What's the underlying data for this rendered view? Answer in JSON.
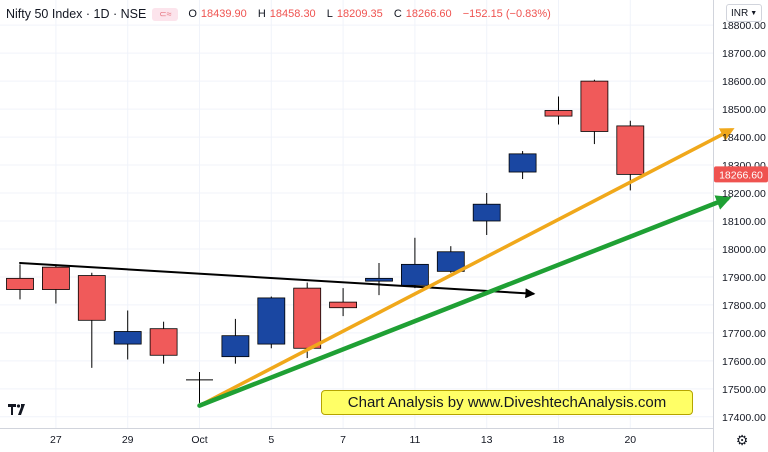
{
  "header": {
    "symbol": "Nifty 50 Index · 1D · NSE",
    "open_label": "O",
    "open": "18439.90",
    "high_label": "H",
    "high": "18458.30",
    "low_label": "L",
    "low": "18209.35",
    "close_label": "C",
    "close": "18266.60",
    "change": "−152.15 (−0.83%)"
  },
  "currency_button": "INR",
  "banner_text": "Chart Analysis by www.DiveshtechAnalysis.com",
  "colors": {
    "up": "#1a47a2",
    "down": "#f05a5a",
    "black_line": "#000000",
    "orange_line": "#f0a81b",
    "green_line": "#1fa034",
    "price_tag": "#ef5350"
  },
  "chart_data": {
    "type": "candlestick",
    "y_ticks": [
      17400,
      17500,
      17600,
      17700,
      17800,
      17900,
      18000,
      18100,
      18200,
      18300,
      18400,
      18500,
      18600,
      18700,
      18800
    ],
    "ylim": [
      17360,
      18890
    ],
    "x_tick_labels": [
      {
        "index": 1,
        "label": "27"
      },
      {
        "index": 3,
        "label": "29"
      },
      {
        "index": 5,
        "label": "Oct"
      },
      {
        "index": 7,
        "label": "5"
      },
      {
        "index": 9,
        "label": "7"
      },
      {
        "index": 11,
        "label": "11"
      },
      {
        "index": 13,
        "label": "13"
      },
      {
        "index": 15,
        "label": "18"
      },
      {
        "index": 17,
        "label": "20"
      }
    ],
    "candles": [
      {
        "i": 0,
        "open": 17895,
        "high": 17945,
        "low": 17820,
        "close": 17855
      },
      {
        "i": 1,
        "open": 17935,
        "high": 17945,
        "low": 17805,
        "close": 17855
      },
      {
        "i": 2,
        "open": 17905,
        "high": 17915,
        "low": 17575,
        "close": 17745
      },
      {
        "i": 3,
        "open": 17660,
        "high": 17780,
        "low": 17605,
        "close": 17705
      },
      {
        "i": 4,
        "open": 17715,
        "high": 17740,
        "low": 17590,
        "close": 17620
      },
      {
        "i": 5,
        "open": 17532,
        "high": 17560,
        "low": 17450,
        "close": 17532
      },
      {
        "i": 6,
        "open": 17615,
        "high": 17750,
        "low": 17590,
        "close": 17690
      },
      {
        "i": 7,
        "open": 17660,
        "high": 17830,
        "low": 17645,
        "close": 17825
      },
      {
        "i": 8,
        "open": 17860,
        "high": 17880,
        "low": 17610,
        "close": 17645
      },
      {
        "i": 9,
        "open": 17810,
        "high": 17860,
        "low": 17760,
        "close": 17790
      },
      {
        "i": 10,
        "open": 17885,
        "high": 17950,
        "low": 17835,
        "close": 17895
      },
      {
        "i": 11,
        "open": 17870,
        "high": 18040,
        "low": 17860,
        "close": 17945
      },
      {
        "i": 12,
        "open": 17920,
        "high": 18010,
        "low": 17915,
        "close": 17990
      },
      {
        "i": 13,
        "open": 18100,
        "high": 18200,
        "low": 18050,
        "close": 18160
      },
      {
        "i": 14,
        "open": 18275,
        "high": 18350,
        "low": 18250,
        "close": 18340
      },
      {
        "i": 15,
        "open": 18495,
        "high": 18545,
        "low": 18445,
        "close": 18475
      },
      {
        "i": 16,
        "open": 18600,
        "high": 18605,
        "low": 18375,
        "close": 18420
      },
      {
        "i": 17,
        "open": 18439.9,
        "high": 18458.3,
        "low": 18209.35,
        "close": 18266.6
      }
    ],
    "last_price_label": "18266.60",
    "trendlines": [
      {
        "name": "black-trendline",
        "from": {
          "i": 0,
          "y": 17950
        },
        "to": {
          "i": 14.3,
          "y": 17840
        },
        "arrow": true
      },
      {
        "name": "orange-trendline",
        "from": {
          "i": 5,
          "y": 17440
        },
        "to": {
          "i": 19.8,
          "y": 18425
        },
        "arrow": true
      },
      {
        "name": "green-trendline",
        "from": {
          "i": 5,
          "y": 17440
        },
        "to": {
          "i": 19.7,
          "y": 18180
        },
        "arrow": true
      }
    ]
  }
}
